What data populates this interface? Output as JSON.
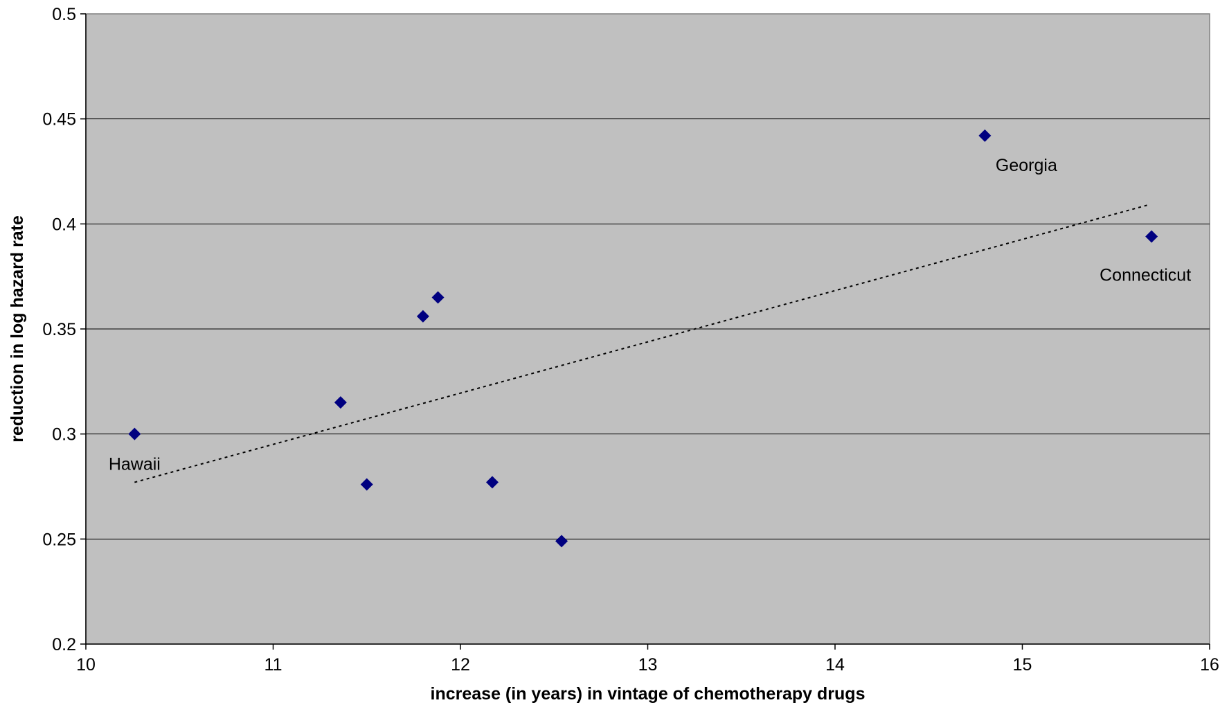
{
  "chart_data": {
    "type": "scatter",
    "title": "",
    "xlabel": "increase (in years) in vintage of chemotherapy drugs",
    "ylabel": "reduction in log hazard rate",
    "xlim": [
      10,
      16
    ],
    "ylim": [
      0.2,
      0.5
    ],
    "x_ticks": [
      "10",
      "11",
      "12",
      "13",
      "14",
      "15",
      "16"
    ],
    "y_ticks": [
      "0.2",
      "0.25",
      "0.3",
      "0.35",
      "0.4",
      "0.45",
      "0.5"
    ],
    "grid": "horizontal",
    "legend": "none",
    "series": [
      {
        "points": [
          {
            "x": 10.26,
            "y": 0.3,
            "label": "Hawaii"
          },
          {
            "x": 11.36,
            "y": 0.315,
            "label": ""
          },
          {
            "x": 11.5,
            "y": 0.276,
            "label": ""
          },
          {
            "x": 11.8,
            "y": 0.356,
            "label": ""
          },
          {
            "x": 11.88,
            "y": 0.365,
            "label": ""
          },
          {
            "x": 12.17,
            "y": 0.277,
            "label": ""
          },
          {
            "x": 12.54,
            "y": 0.249,
            "label": ""
          },
          {
            "x": 14.8,
            "y": 0.442,
            "label": "Georgia"
          },
          {
            "x": 15.69,
            "y": 0.394,
            "label": "Connecticut"
          }
        ]
      }
    ],
    "trendline": {
      "type": "linear",
      "style": "dotted",
      "x": [
        10.26,
        15.67
      ],
      "y": [
        0.277,
        0.409
      ]
    },
    "colors": {
      "plot_background": "#c0c0c0",
      "marker": "#000080",
      "gridline": "#000000",
      "trendline": "#000000"
    }
  }
}
